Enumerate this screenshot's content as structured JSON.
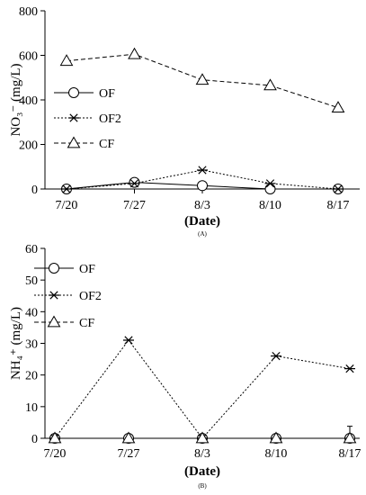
{
  "chart_data": [
    {
      "type": "line",
      "panel_label": "(A)",
      "categories": [
        "7/20",
        "7/27",
        "8/3",
        "8/10",
        "8/17"
      ],
      "ylabel": "NO₃⁻ (mg/L)",
      "xlabel": "(Date)",
      "ylim": [
        0,
        800
      ],
      "yticks": [
        "0",
        "200",
        "400",
        "600",
        "800"
      ],
      "legend_position": "middle-left",
      "series": [
        {
          "name": "OF",
          "values": [
            0,
            30,
            15,
            0,
            0
          ],
          "marker": "circle",
          "line": "solid"
        },
        {
          "name": "OF2",
          "values": [
            0,
            25,
            85,
            25,
            0
          ],
          "marker": "star",
          "line": "dotted"
        },
        {
          "name": "CF",
          "values": [
            575,
            605,
            490,
            465,
            365
          ],
          "marker": "triangle",
          "line": "dashed"
        }
      ]
    },
    {
      "type": "line",
      "panel_label": "(B)",
      "categories": [
        "7/20",
        "7/27",
        "8/3",
        "8/10",
        "8/17"
      ],
      "ylabel": "NH₄⁺ (mg/L)",
      "xlabel": "(Date)",
      "ylim": [
        0,
        60
      ],
      "yticks": [
        "0",
        "10",
        "20",
        "30",
        "40",
        "50",
        "60"
      ],
      "legend_position": "top-left",
      "series": [
        {
          "name": "OF",
          "values": [
            0,
            0,
            0,
            0,
            0
          ],
          "marker": "circle",
          "line": "solid"
        },
        {
          "name": "OF2",
          "values": [
            0,
            31,
            0,
            26,
            22
          ],
          "marker": "star",
          "line": "dotted"
        },
        {
          "name": "CF",
          "values": [
            0,
            0,
            0,
            0,
            0
          ],
          "marker": "triangle",
          "line": "dashed"
        }
      ]
    }
  ]
}
